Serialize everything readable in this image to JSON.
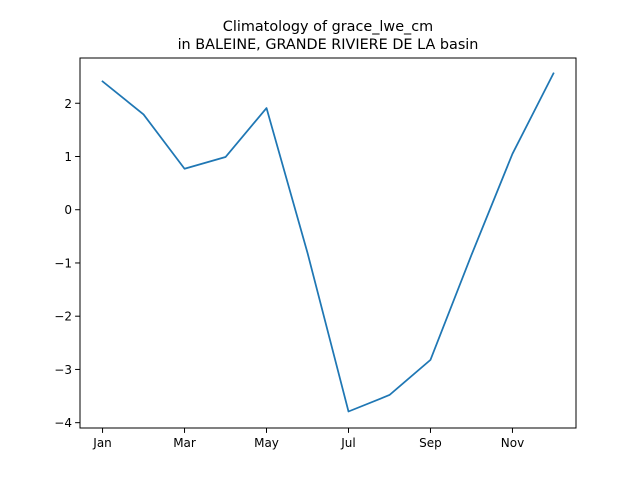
{
  "chart_data": {
    "type": "line",
    "title_line1": "Climatology of grace_lwe_cm",
    "title_line2": "in BALEINE, GRANDE RIVIERE DE LA basin",
    "xlabel": "",
    "ylabel": "",
    "x": [
      "Jan",
      "Feb",
      "Mar",
      "Apr",
      "May",
      "Jun",
      "Jul",
      "Aug",
      "Sep",
      "Oct",
      "Nov",
      "Dec"
    ],
    "xtick_labels": [
      "Jan",
      "",
      "Mar",
      "",
      "May",
      "",
      "Jul",
      "",
      "Sep",
      "",
      "Nov",
      ""
    ],
    "yticks": [
      2,
      1,
      0,
      -1,
      -2,
      -3,
      -4
    ],
    "ytick_labels": [
      "2",
      "1",
      "0",
      "−1",
      "−2",
      "−3",
      "−4"
    ],
    "ylim": [
      -4.1,
      2.85
    ],
    "series": [
      {
        "values": [
          2.41,
          1.79,
          0.77,
          0.99,
          1.91,
          -0.81,
          -3.79,
          -3.48,
          -2.82,
          -0.85,
          1.05,
          2.56
        ],
        "color": "#1f77b4"
      }
    ],
    "grid": false,
    "legend": "none"
  }
}
